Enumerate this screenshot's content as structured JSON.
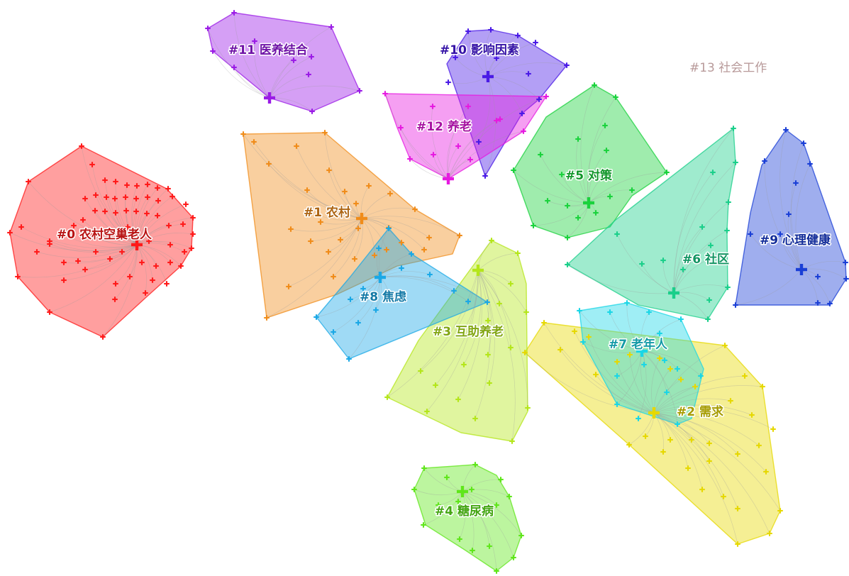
{
  "clusters": [
    {
      "id": "c0",
      "label": "#0 农村空巢老人",
      "color": "#ff1a1a"
    },
    {
      "id": "c1",
      "label": "#1 农村",
      "color": "#f08c1a"
    },
    {
      "id": "c2",
      "label": "#2 需求",
      "color": "#e6d800"
    },
    {
      "id": "c3",
      "label": "#3 互助养老",
      "color": "#b4e61a"
    },
    {
      "id": "c4",
      "label": "#4 糖尿病",
      "color": "#5fe61a"
    },
    {
      "id": "c5",
      "label": "#5 对策",
      "color": "#1ad23c"
    },
    {
      "id": "c6",
      "label": "#6 社区",
      "color": "#1acf8a"
    },
    {
      "id": "c7",
      "label": "#7 老年人",
      "color": "#1ad6e6"
    },
    {
      "id": "c8",
      "label": "#8 焦虑",
      "color": "#1aa8e6"
    },
    {
      "id": "c9",
      "label": "#9 心理健康",
      "color": "#1a3fd6"
    },
    {
      "id": "c10",
      "label": "#10 影响因素",
      "color": "#4a1ae6"
    },
    {
      "id": "c11",
      "label": "#11 医养结合",
      "color": "#9a1ae6"
    },
    {
      "id": "c12",
      "label": "#12 养老",
      "color": "#e61ae0"
    },
    {
      "id": "c13",
      "label": "#13 社会工作",
      "color": "#c8a8a8"
    }
  ]
}
